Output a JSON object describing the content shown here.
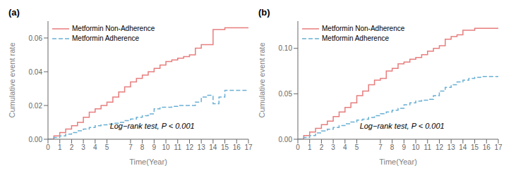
{
  "chart_data": [
    {
      "type": "line",
      "title": "(a)",
      "xlabel": "Time(Year)",
      "ylabel": "Cumulative event rate",
      "annotation": "Log−rank test, P < 0.001",
      "legend": "upper left",
      "grid": false,
      "xlim": [
        0,
        17
      ],
      "xticks": [
        0,
        1,
        2,
        3,
        4,
        5,
        7,
        8,
        9,
        10,
        11,
        12,
        13,
        14,
        15,
        16,
        17
      ],
      "ylim": [
        0,
        0.07
      ],
      "yticks": [
        {
          "value": 0.0,
          "label": "0.00"
        },
        {
          "value": 0.02,
          "label": "0.02"
        },
        {
          "value": 0.04,
          "label": "0.04"
        },
        {
          "value": 0.06,
          "label": "0.06"
        }
      ],
      "series": [
        {
          "name": "Metformin Non-Adherence",
          "color": "#e87d7d",
          "line_style": "solid",
          "x": [
            0,
            0.5,
            1,
            1.5,
            2,
            2.5,
            3,
            3.5,
            4,
            4.5,
            5,
            5.5,
            6,
            6.5,
            7,
            7.5,
            8,
            8.5,
            9,
            9.5,
            10,
            10.5,
            11,
            11.5,
            12,
            12.5,
            13,
            13.5,
            14,
            14.5,
            15,
            15.5,
            16,
            16.5,
            17
          ],
          "values": [
            0,
            0.002,
            0.004,
            0.006,
            0.008,
            0.01,
            0.013,
            0.016,
            0.018,
            0.02,
            0.022,
            0.025,
            0.028,
            0.031,
            0.034,
            0.036,
            0.038,
            0.04,
            0.042,
            0.044,
            0.046,
            0.047,
            0.048,
            0.049,
            0.05,
            0.054,
            0.056,
            0.056,
            0.065,
            0.065,
            0.066,
            0.066,
            0.066,
            0.066,
            0.066
          ]
        },
        {
          "name": "Metformin Adherence",
          "color": "#6ab0d4",
          "line_style": "dashed",
          "x": [
            0,
            0.5,
            1,
            1.5,
            2,
            2.5,
            3,
            3.5,
            4,
            4.5,
            5,
            5.5,
            6,
            6.5,
            7,
            7.5,
            8,
            8.5,
            9,
            9.5,
            10,
            10.5,
            11,
            11.5,
            12,
            12.5,
            13,
            13.5,
            14,
            14.5,
            15,
            15.5,
            16,
            16.5,
            17
          ],
          "values": [
            0,
            0.001,
            0.002,
            0.003,
            0.004,
            0.005,
            0.006,
            0.007,
            0.008,
            0.0085,
            0.009,
            0.0095,
            0.01,
            0.011,
            0.012,
            0.013,
            0.014,
            0.015,
            0.018,
            0.019,
            0.019,
            0.0195,
            0.02,
            0.02,
            0.02,
            0.022,
            0.025,
            0.026,
            0.021,
            0.025,
            0.029,
            0.029,
            0.029,
            0.029,
            0.029
          ]
        }
      ]
    },
    {
      "type": "line",
      "title": "(b)",
      "xlabel": "Time(Year)",
      "ylabel": "Cumulative event rate",
      "annotation": "Log−rank test, P < 0.001",
      "legend": "upper left",
      "grid": false,
      "xlim": [
        0,
        17
      ],
      "xticks": [
        0,
        1,
        2,
        3,
        4,
        5,
        7,
        8,
        9,
        10,
        11,
        12,
        13,
        14,
        15,
        16,
        17
      ],
      "ylim": [
        0,
        0.13
      ],
      "yticks": [
        {
          "value": 0.0,
          "label": "0.00"
        },
        {
          "value": 0.05,
          "label": "0.05"
        },
        {
          "value": 0.1,
          "label": "0.10"
        }
      ],
      "series": [
        {
          "name": "Metformin Non-Adherence",
          "color": "#e87d7d",
          "line_style": "solid",
          "x": [
            0,
            0.5,
            1,
            1.5,
            2,
            2.5,
            3,
            3.5,
            4,
            4.5,
            5,
            5.5,
            6,
            6.5,
            7,
            7.5,
            8,
            8.5,
            9,
            9.5,
            10,
            10.5,
            11,
            11.5,
            12,
            12.5,
            13,
            13.5,
            14,
            14.5,
            15,
            15.5,
            16,
            16.5,
            17
          ],
          "values": [
            0,
            0.004,
            0.008,
            0.012,
            0.016,
            0.02,
            0.025,
            0.03,
            0.035,
            0.04,
            0.048,
            0.053,
            0.06,
            0.065,
            0.067,
            0.075,
            0.078,
            0.083,
            0.085,
            0.088,
            0.09,
            0.093,
            0.097,
            0.1,
            0.103,
            0.11,
            0.113,
            0.115,
            0.12,
            0.12,
            0.122,
            0.122,
            0.122,
            0.122,
            0.122
          ]
        },
        {
          "name": "Metformin Adherence",
          "color": "#6ab0d4",
          "line_style": "dashed",
          "x": [
            0,
            0.5,
            1,
            1.5,
            2,
            2.5,
            3,
            3.5,
            4,
            4.5,
            5,
            5.5,
            6,
            6.5,
            7,
            7.5,
            8,
            8.5,
            9,
            9.5,
            10,
            10.5,
            11,
            11.5,
            12,
            12.5,
            13,
            13.5,
            14,
            14.5,
            15,
            15.5,
            16,
            16.5,
            17
          ],
          "values": [
            0,
            0.002,
            0.004,
            0.007,
            0.009,
            0.011,
            0.013,
            0.015,
            0.017,
            0.019,
            0.021,
            0.022,
            0.024,
            0.026,
            0.028,
            0.03,
            0.032,
            0.034,
            0.038,
            0.04,
            0.042,
            0.043,
            0.044,
            0.048,
            0.053,
            0.057,
            0.06,
            0.063,
            0.065,
            0.067,
            0.068,
            0.069,
            0.069,
            0.069,
            0.069
          ]
        }
      ]
    }
  ]
}
